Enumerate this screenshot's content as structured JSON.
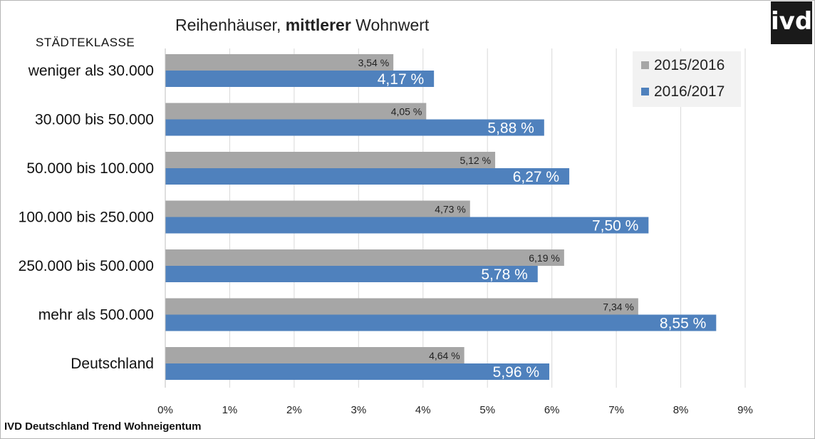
{
  "source_note": "IVD Deutschland Trend Wohneigentum",
  "logo_text": "ivd",
  "chart_data": {
    "type": "bar",
    "orientation": "horizontal",
    "title_prefix": "Reihenhäuser,",
    "title_bold": "mittlerer",
    "title_suffix": "Wohnwert",
    "category_header": "STÄDTEKLASSE",
    "categories": [
      "weniger als 30.000",
      "30.000 bis 50.000",
      "50.000 bis 100.000",
      "100.000 bis 250.000",
      "250.000 bis 500.000",
      "mehr als 500.000",
      "Deutschland"
    ],
    "series": [
      {
        "name": "2015/2016",
        "color": "#a6a6a6",
        "values": [
          3.54,
          4.05,
          5.12,
          4.73,
          6.19,
          7.34,
          4.64
        ],
        "labels": [
          "3,54 %",
          "4,05 %",
          "5,12 %",
          "4,73 %",
          "6,19 %",
          "7,34 %",
          "4,64 %"
        ]
      },
      {
        "name": "2016/2017",
        "color": "#4f81bd",
        "values": [
          4.17,
          5.88,
          6.27,
          7.5,
          5.78,
          8.55,
          5.96
        ],
        "labels": [
          "4,17 %",
          "5,88 %",
          "6,27 %",
          "7,50 %",
          "5,78 %",
          "8,55 %",
          "5,96 %"
        ]
      }
    ],
    "xlim": [
      0,
      9
    ],
    "xticks": [
      0,
      1,
      2,
      3,
      4,
      5,
      6,
      7,
      8,
      9
    ],
    "xtick_labels": [
      "0%",
      "1%",
      "2%",
      "3%",
      "4%",
      "5%",
      "6%",
      "7%",
      "8%",
      "9%"
    ],
    "grid": true,
    "legend_position": "top-right"
  }
}
